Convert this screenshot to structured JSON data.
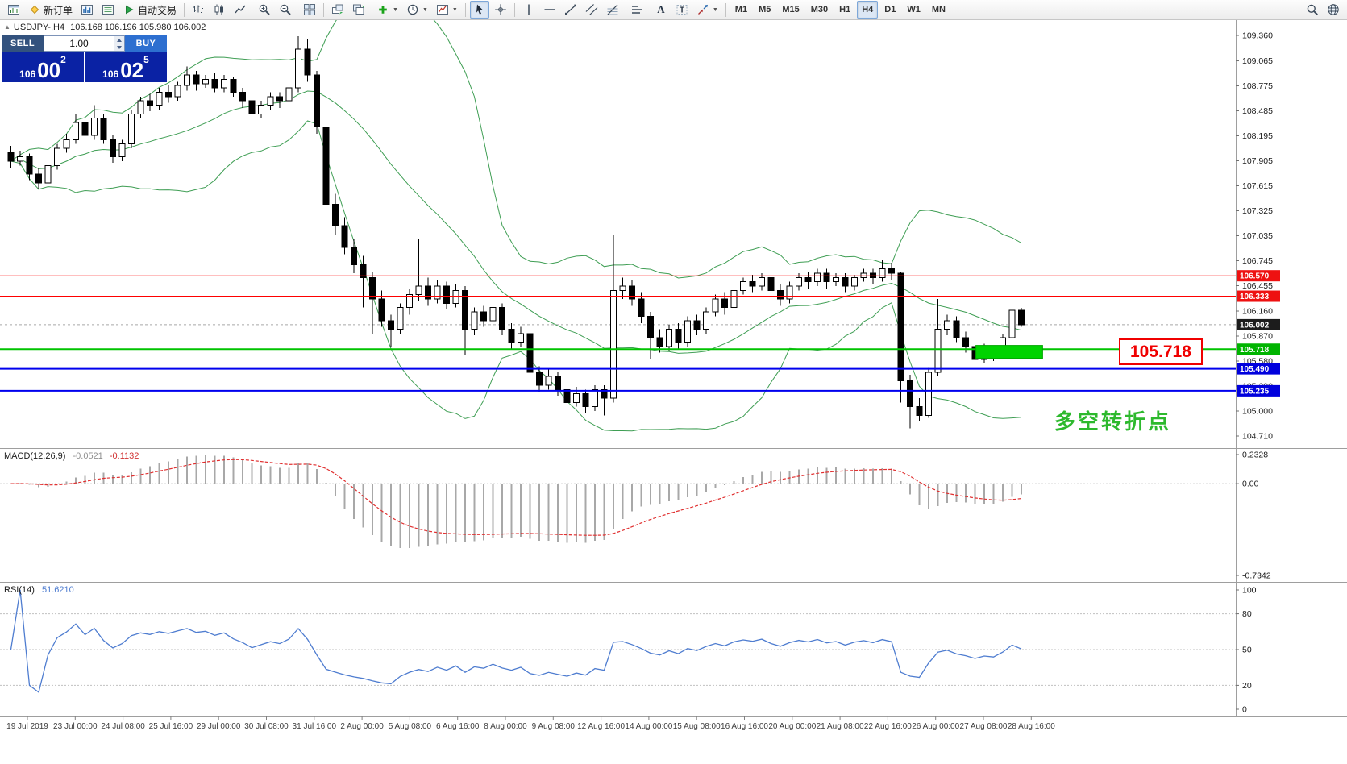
{
  "toolbar": {
    "items": [
      {
        "type": "icon",
        "name": "terminal-icon",
        "icon": "terminal"
      },
      {
        "type": "button",
        "name": "new-order-button",
        "icon": "neworder",
        "label": "新订单"
      },
      {
        "type": "icon-button",
        "name": "market-watch-button",
        "icon": "market"
      },
      {
        "type": "icon-button",
        "name": "data-window-button",
        "icon": "dataw"
      },
      {
        "type": "button",
        "name": "auto-trading-button",
        "icon": "autotrade",
        "label": "自动交易"
      },
      {
        "type": "sep"
      },
      {
        "type": "icon-button",
        "name": "bar-chart-mode-button",
        "icon": "bars"
      },
      {
        "type": "icon-button",
        "name": "candlestick-mode-button",
        "icon": "candles"
      },
      {
        "type": "icon-button",
        "name": "line-chart-mode-button",
        "icon": "linetype"
      },
      {
        "type": "gap"
      },
      {
        "type": "icon-button",
        "name": "zoom-in-button",
        "icon": "zoomin"
      },
      {
        "type": "icon-button",
        "name": "zoom-out-button",
        "icon": "zoomout"
      },
      {
        "type": "gap"
      },
      {
        "type": "icon-button",
        "name": "tile-windows-button",
        "icon": "tile"
      },
      {
        "type": "sep"
      },
      {
        "type": "icon-button",
        "name": "arrange-windows-button",
        "icon": "arrange"
      },
      {
        "type": "icon-button",
        "name": "cascade-windows-button",
        "icon": "cascade"
      },
      {
        "type": "gap"
      },
      {
        "type": "icon-button",
        "name": "indicators-button",
        "icon": "addind",
        "caret": true
      },
      {
        "type": "icon-button",
        "name": "periods-button",
        "icon": "clock",
        "caret": true
      },
      {
        "type": "icon-button",
        "name": "templates-button",
        "icon": "template",
        "caret": true
      },
      {
        "type": "sep"
      },
      {
        "type": "icon-button",
        "name": "cursor-button",
        "icon": "cursor",
        "active": true
      },
      {
        "type": "icon-button",
        "name": "crosshair-button",
        "icon": "crosshair"
      },
      {
        "type": "sep"
      },
      {
        "type": "icon-button",
        "name": "vertical-line-button",
        "icon": "vline"
      },
      {
        "type": "icon-button",
        "name": "horizontal-line-button",
        "icon": "hline"
      },
      {
        "type": "icon-button",
        "name": "trendline-button",
        "icon": "trend"
      },
      {
        "type": "icon-button",
        "name": "channel-button",
        "icon": "channel"
      },
      {
        "type": "icon-button",
        "name": "fibonacci-button",
        "icon": "fibo"
      },
      {
        "type": "gap"
      },
      {
        "type": "icon-button",
        "name": "objects-list-button",
        "icon": "objects"
      },
      {
        "type": "gap"
      },
      {
        "type": "icon-button",
        "name": "text-button",
        "icon": "textA"
      },
      {
        "type": "icon-button",
        "name": "text-label-button",
        "icon": "textT"
      },
      {
        "type": "icon-button",
        "name": "arrows-button",
        "icon": "arrows",
        "caret": true
      },
      {
        "type": "sep"
      }
    ],
    "timeframes": {
      "active": "H4",
      "items": [
        "M1",
        "M5",
        "M15",
        "M30",
        "H1",
        "H4",
        "D1",
        "W1",
        "MN"
      ]
    },
    "right_items": [
      {
        "type": "icon-button",
        "name": "search-button",
        "icon": "search"
      },
      {
        "type": "icon-button",
        "name": "data-center-button",
        "icon": "datacenter"
      }
    ]
  },
  "chart": {
    "title": {
      "collapse_icon": "▲",
      "symbol": "USDJPY-,H4",
      "ohlc": "106.168 106.196 105.980 106.002"
    },
    "price_axis_labels": [
      "109.360",
      "109.065",
      "108.775",
      "108.485",
      "108.195",
      "107.905",
      "107.615",
      "107.325",
      "107.035",
      "106.745",
      "106.455",
      "106.160",
      "105.870",
      "105.580",
      "105.290",
      "105.000",
      "104.710"
    ],
    "hlines": [
      {
        "price": 106.57,
        "color": "#ff0000",
        "tag": "#ee1111",
        "width": 1,
        "label": "106.570"
      },
      {
        "price": 106.333,
        "color": "#ff0000",
        "tag": "#ee1111",
        "width": 1,
        "label": "106.333"
      },
      {
        "price": 105.718,
        "color": "#00c400",
        "tag": "#00b400",
        "width": 2,
        "label": "105.718"
      },
      {
        "price": 105.49,
        "color": "#0000ee",
        "tag": "#0000dd",
        "width": 2,
        "label": "105.490"
      },
      {
        "price": 105.235,
        "color": "#0000ee",
        "tag": "#0000dd",
        "width": 2,
        "label": "105.235"
      }
    ],
    "current_price": {
      "value": 106.002,
      "label": "106.002",
      "line_color": "#a8a8a8",
      "tag": "#1c1c1c"
    },
    "green_box": {
      "from_bar": 104.4,
      "to_bar": 111.6,
      "price_top": 105.762,
      "price_bottom": 105.612,
      "fill": "#00d300",
      "stroke": "#00a800"
    },
    "callout": "105.718",
    "annotation": "多空转折点",
    "colors": {
      "bollinger": "#3f9e54",
      "bull": "#ffffff",
      "bear": "#000000",
      "outline": "#000000",
      "annotation": "#2db92d",
      "callout": "#f00000",
      "axis_text": "#1a1a1a",
      "time_text": "#3c3c3c"
    }
  },
  "trade": {
    "sell_label": "SELL",
    "buy_label": "BUY",
    "volume": "1.00",
    "sell_price": {
      "prefix": "106",
      "big": "00",
      "sup": "2"
    },
    "buy_price": {
      "prefix": "106",
      "big": "02",
      "sup": "5"
    },
    "colors": {
      "sell_bg": "#33527e",
      "buy_bg": "#2d6fd0",
      "price_bg": "#0a22a4"
    }
  },
  "indicators": {
    "macd": {
      "name": "MACD(12,26,9)",
      "value_main": "-0.0521",
      "value_signal": "-0.1132",
      "scale": [
        {
          "v": 0.2328,
          "label": "0.2328"
        },
        {
          "v": 0,
          "label": "0.00"
        },
        {
          "v": -0.7342,
          "label": "-0.7342"
        }
      ],
      "colors": {
        "hist": "#a8a8a8",
        "signal": "#e03030"
      }
    },
    "rsi": {
      "name": "RSI(14)",
      "value": "51.6210",
      "scale": [
        {
          "v": 100,
          "label": "100"
        },
        {
          "v": 80,
          "label": "80"
        },
        {
          "v": 50,
          "label": "50"
        },
        {
          "v": 20,
          "label": "20"
        },
        {
          "v": 0,
          "label": "0"
        }
      ],
      "levels": [
        80,
        50,
        20
      ],
      "color": "#4f7dd0"
    }
  },
  "chart_data": {
    "type": "candlestick",
    "symbol": "USDJPY-",
    "timeframe": "H4",
    "title": "USDJPY-,H4",
    "y_range": [
      104.71,
      109.36
    ],
    "levels": [
      106.57,
      106.333,
      105.718,
      105.49,
      105.235
    ],
    "overlays": {
      "bollinger": {
        "period": 20,
        "deviation": 2
      }
    },
    "oscillators": {
      "macd": {
        "fast": 12,
        "slow": 26,
        "signal": 9,
        "range": [
          -0.7342,
          0.2328
        ]
      },
      "rsi": {
        "period": 14,
        "last": 51.621,
        "range": [
          0,
          100
        ]
      }
    },
    "x_labels": [
      "19 Jul 2019",
      "23 Jul 00:00",
      "24 Jul 08:00",
      "25 Jul 16:00",
      "29 Jul 00:00",
      "30 Jul 08:00",
      "31 Jul 16:00",
      "2 Aug 00:00",
      "5 Aug 08:00",
      "6 Aug 16:00",
      "8 Aug 00:00",
      "9 Aug 08:00",
      "12 Aug 16:00",
      "14 Aug 00:00",
      "15 Aug 08:00",
      "16 Aug 16:00",
      "20 Aug 00:00",
      "21 Aug 08:00",
      "22 Aug 16:00",
      "26 Aug 00:00",
      "27 Aug 08:00",
      "28 Aug 16:00"
    ],
    "ohlc": [
      [
        108.0,
        108.08,
        107.82,
        107.9
      ],
      [
        107.9,
        108.02,
        107.85,
        107.95
      ],
      [
        107.95,
        107.99,
        107.68,
        107.75
      ],
      [
        107.75,
        107.82,
        107.58,
        107.65
      ],
      [
        107.65,
        107.9,
        107.62,
        107.85
      ],
      [
        107.85,
        108.1,
        107.8,
        108.05
      ],
      [
        108.05,
        108.22,
        108.0,
        108.15
      ],
      [
        108.15,
        108.45,
        108.1,
        108.35
      ],
      [
        108.35,
        108.4,
        108.12,
        108.2
      ],
      [
        108.2,
        108.55,
        108.15,
        108.4
      ],
      [
        108.4,
        108.45,
        108.1,
        108.15
      ],
      [
        108.15,
        108.2,
        107.88,
        107.95
      ],
      [
        107.95,
        108.15,
        107.9,
        108.1
      ],
      [
        108.1,
        108.5,
        108.05,
        108.45
      ],
      [
        108.45,
        108.65,
        108.4,
        108.6
      ],
      [
        108.6,
        108.68,
        108.48,
        108.55
      ],
      [
        108.55,
        108.75,
        108.5,
        108.7
      ],
      [
        108.7,
        108.78,
        108.58,
        108.65
      ],
      [
        108.65,
        108.82,
        108.6,
        108.78
      ],
      [
        108.78,
        109.0,
        108.72,
        108.9
      ],
      [
        108.9,
        108.95,
        108.72,
        108.8
      ],
      [
        108.8,
        108.9,
        108.75,
        108.85
      ],
      [
        108.85,
        108.92,
        108.7,
        108.75
      ],
      [
        108.75,
        108.9,
        108.7,
        108.85
      ],
      [
        108.85,
        108.88,
        108.65,
        108.7
      ],
      [
        108.7,
        108.75,
        108.52,
        108.6
      ],
      [
        108.6,
        108.65,
        108.38,
        108.45
      ],
      [
        108.45,
        108.6,
        108.4,
        108.55
      ],
      [
        108.55,
        108.7,
        108.5,
        108.65
      ],
      [
        108.65,
        108.7,
        108.52,
        108.6
      ],
      [
        108.6,
        108.8,
        108.55,
        108.75
      ],
      [
        108.75,
        109.35,
        108.7,
        109.2
      ],
      [
        109.2,
        109.32,
        108.82,
        108.9
      ],
      [
        108.9,
        108.95,
        108.22,
        108.3
      ],
      [
        108.3,
        108.35,
        107.32,
        107.4
      ],
      [
        107.4,
        107.52,
        107.05,
        107.15
      ],
      [
        107.15,
        107.25,
        106.82,
        106.9
      ],
      [
        106.9,
        107.0,
        106.6,
        106.7
      ],
      [
        106.7,
        106.8,
        106.2,
        106.55
      ],
      [
        106.55,
        106.62,
        105.9,
        106.3
      ],
      [
        106.3,
        106.4,
        105.98,
        106.05
      ],
      [
        106.05,
        106.12,
        105.75,
        105.95
      ],
      [
        105.95,
        106.25,
        105.9,
        106.2
      ],
      [
        106.2,
        106.42,
        106.12,
        106.35
      ],
      [
        106.35,
        107.0,
        106.28,
        106.45
      ],
      [
        106.45,
        106.55,
        106.22,
        106.3
      ],
      [
        106.3,
        106.52,
        106.25,
        106.45
      ],
      [
        106.45,
        106.5,
        106.18,
        106.25
      ],
      [
        106.25,
        106.48,
        106.2,
        106.4
      ],
      [
        106.4,
        106.45,
        105.65,
        105.95
      ],
      [
        105.95,
        106.2,
        105.88,
        106.15
      ],
      [
        106.15,
        106.22,
        105.98,
        106.05
      ],
      [
        106.05,
        106.25,
        106.0,
        106.2
      ],
      [
        106.2,
        106.25,
        105.88,
        105.95
      ],
      [
        105.95,
        106.02,
        105.72,
        105.8
      ],
      [
        105.8,
        105.98,
        105.75,
        105.9
      ],
      [
        105.9,
        105.95,
        105.25,
        105.45
      ],
      [
        105.45,
        105.52,
        105.22,
        105.3
      ],
      [
        105.3,
        105.48,
        105.25,
        105.4
      ],
      [
        105.4,
        105.45,
        105.18,
        105.25
      ],
      [
        105.25,
        105.32,
        104.95,
        105.1
      ],
      [
        105.1,
        105.28,
        105.05,
        105.2
      ],
      [
        105.2,
        105.25,
        104.98,
        105.05
      ],
      [
        105.05,
        105.3,
        105.0,
        105.25
      ],
      [
        105.25,
        105.3,
        104.95,
        105.15
      ],
      [
        105.15,
        107.05,
        105.1,
        106.4
      ],
      [
        106.4,
        106.55,
        106.3,
        106.45
      ],
      [
        106.45,
        106.52,
        106.22,
        106.3
      ],
      [
        106.3,
        106.38,
        106.02,
        106.1
      ],
      [
        106.1,
        106.15,
        105.6,
        105.85
      ],
      [
        105.85,
        105.95,
        105.68,
        105.75
      ],
      [
        105.75,
        106.0,
        105.7,
        105.95
      ],
      [
        105.95,
        106.02,
        105.72,
        105.8
      ],
      [
        105.8,
        106.1,
        105.75,
        106.05
      ],
      [
        106.05,
        106.12,
        105.88,
        105.95
      ],
      [
        105.95,
        106.2,
        105.9,
        106.15
      ],
      [
        106.15,
        106.35,
        106.1,
        106.3
      ],
      [
        106.3,
        106.38,
        106.12,
        106.2
      ],
      [
        106.2,
        106.45,
        106.15,
        106.4
      ],
      [
        106.4,
        106.55,
        106.35,
        106.5
      ],
      [
        106.5,
        106.58,
        106.38,
        106.45
      ],
      [
        106.45,
        106.6,
        106.4,
        106.55
      ],
      [
        106.55,
        106.6,
        106.32,
        106.4
      ],
      [
        106.4,
        106.48,
        106.22,
        106.3
      ],
      [
        106.3,
        106.5,
        106.25,
        106.45
      ],
      [
        106.45,
        106.6,
        106.4,
        106.55
      ],
      [
        106.55,
        106.62,
        106.42,
        106.5
      ],
      [
        106.5,
        106.65,
        106.45,
        106.6
      ],
      [
        106.6,
        106.65,
        106.42,
        106.5
      ],
      [
        106.5,
        106.6,
        106.45,
        106.55
      ],
      [
        106.55,
        106.6,
        106.38,
        106.45
      ],
      [
        106.45,
        106.58,
        106.4,
        106.55
      ],
      [
        106.55,
        106.65,
        106.5,
        106.6
      ],
      [
        106.6,
        106.65,
        106.48,
        106.55
      ],
      [
        106.55,
        106.75,
        106.5,
        106.65
      ],
      [
        106.65,
        106.72,
        106.52,
        106.6
      ],
      [
        106.6,
        106.62,
        105.1,
        105.35
      ],
      [
        105.35,
        105.42,
        104.8,
        105.05
      ],
      [
        105.05,
        105.15,
        104.88,
        104.95
      ],
      [
        104.95,
        105.5,
        104.92,
        105.45
      ],
      [
        105.45,
        106.3,
        105.4,
        105.95
      ],
      [
        105.95,
        106.12,
        105.88,
        106.05
      ],
      [
        106.05,
        106.1,
        105.8,
        105.85
      ],
      [
        105.85,
        105.92,
        105.68,
        105.75
      ],
      [
        105.75,
        105.82,
        105.5,
        105.6
      ],
      [
        105.6,
        105.78,
        105.55,
        105.7
      ],
      [
        105.7,
        105.75,
        105.58,
        105.65
      ],
      [
        105.65,
        105.9,
        105.6,
        105.85
      ],
      [
        105.85,
        106.2,
        105.8,
        106.17
      ],
      [
        106.168,
        106.196,
        105.98,
        106.002
      ]
    ]
  }
}
